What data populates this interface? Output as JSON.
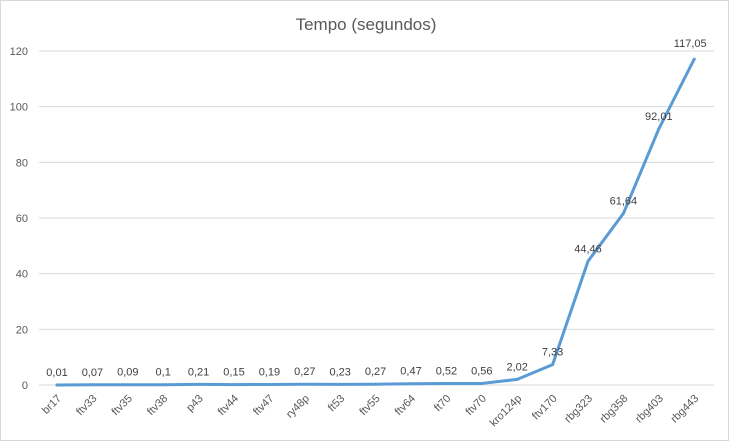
{
  "chart_data": {
    "type": "line",
    "title": "Tempo (segundos)",
    "xlabel": "",
    "ylabel": "",
    "ylim": [
      0,
      120
    ],
    "yticks": [
      0,
      20,
      40,
      60,
      80,
      100,
      120
    ],
    "grid": true,
    "legend": "none",
    "categories": [
      "br17",
      "ftv33",
      "ftv35",
      "ftv38",
      "p43",
      "ftv44",
      "ftv47",
      "ry48p",
      "ft53",
      "ftv55",
      "ftv64",
      "ft70",
      "ftv70",
      "kro124p",
      "ftv170",
      "rbg323",
      "rbg358",
      "rbg403",
      "rbg443"
    ],
    "series": [
      {
        "values": [
          0.01,
          0.07,
          0.09,
          0.1,
          0.21,
          0.15,
          0.19,
          0.27,
          0.23,
          0.27,
          0.47,
          0.52,
          0.56,
          2.02,
          7.33,
          44.46,
          61.64,
          92.01,
          117.05
        ],
        "labels": [
          "0,01",
          "0,07",
          "0,09",
          "0,1",
          "0,21",
          "0,15",
          "0,19",
          "0,27",
          "0,23",
          "0,27",
          "0,47",
          "0,52",
          "0,56",
          "2,02",
          "7,33",
          "44,46",
          "61,64",
          "92,01",
          "117,05"
        ],
        "color": "#5b9bd5"
      }
    ]
  }
}
